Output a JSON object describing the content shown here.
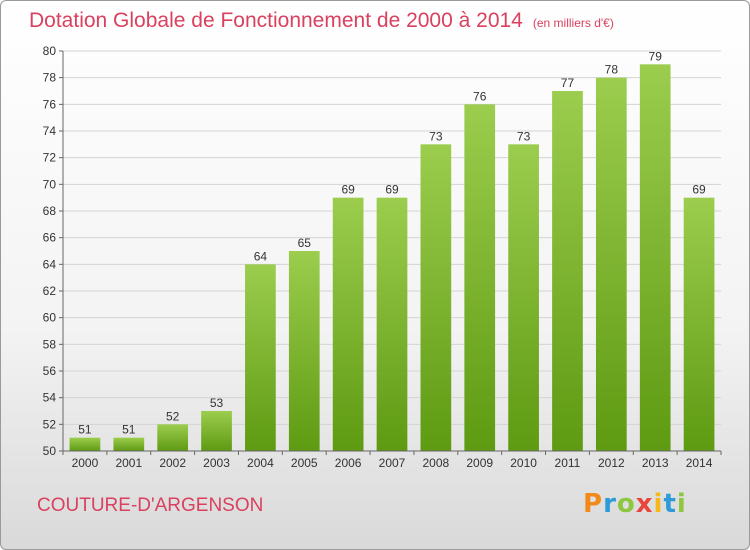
{
  "title": "Dotation Globale de Fonctionnement de 2000 à 2014",
  "subtitle": "(en milliers d'€)",
  "commune": "COUTURE-D'ARGENSON",
  "logo": {
    "letters": [
      "P",
      "r",
      "o",
      "x",
      "i",
      "t",
      "i"
    ]
  },
  "colors": {
    "bar_top": "#9ccd4e",
    "bar_bottom": "#5e9a12",
    "title": "#d9415f"
  },
  "chart_data": {
    "type": "bar",
    "title": "Dotation Globale de Fonctionnement de 2000 à 2014",
    "subtitle": "(en milliers d'€)",
    "categories": [
      "2000",
      "2001",
      "2002",
      "2003",
      "2004",
      "2005",
      "2006",
      "2007",
      "2008",
      "2009",
      "2010",
      "2011",
      "2012",
      "2013",
      "2014"
    ],
    "values": [
      51,
      51,
      52,
      53,
      64,
      65,
      69,
      69,
      73,
      76,
      73,
      77,
      78,
      79,
      69
    ],
    "ylim": [
      50,
      80
    ],
    "yticks": [
      50,
      52,
      54,
      56,
      58,
      60,
      62,
      64,
      66,
      68,
      70,
      72,
      74,
      76,
      78,
      80
    ],
    "grid": true,
    "data_labels": true
  }
}
